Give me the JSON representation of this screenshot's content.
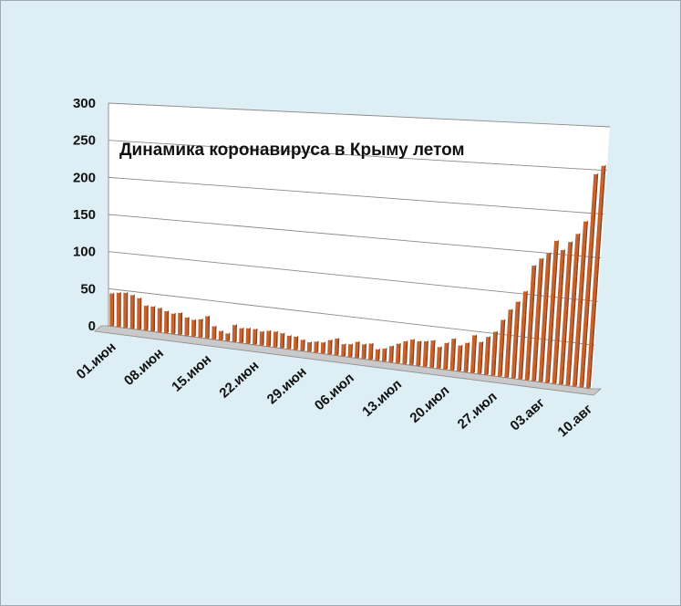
{
  "chart_data": {
    "type": "bar",
    "title": "Динамика  коронавируса в Крыму летом",
    "xlabel": "",
    "ylabel": "",
    "ylim": [
      0,
      300
    ],
    "yticks": [
      "0",
      "50",
      "100",
      "150",
      "200",
      "250",
      "300"
    ],
    "xtick_labels": [
      "01.июн",
      "08.июн",
      "15.июн",
      "22.июн",
      "29.июн",
      "06.июл",
      "13.июл",
      "20.июл",
      "27.июл",
      "03.авг",
      "10.авг"
    ],
    "grid": true,
    "legend": "none",
    "bar_color": "#c8622d",
    "start_date": "01.06",
    "values": [
      44,
      46,
      47,
      45,
      42,
      33,
      33,
      32,
      29,
      27,
      29,
      24,
      22,
      24,
      29,
      17,
      12,
      10,
      22,
      19,
      20,
      20,
      18,
      20,
      20,
      19,
      17,
      17,
      14,
      12,
      14,
      14,
      18,
      21,
      15,
      16,
      20,
      18,
      20,
      14,
      16,
      20,
      24,
      28,
      31,
      30,
      31,
      33,
      26,
      32,
      38,
      31,
      35,
      45,
      38,
      45,
      52,
      67,
      80,
      90,
      103,
      134,
      143,
      150,
      165,
      155,
      165,
      175,
      190,
      245,
      255
    ]
  }
}
